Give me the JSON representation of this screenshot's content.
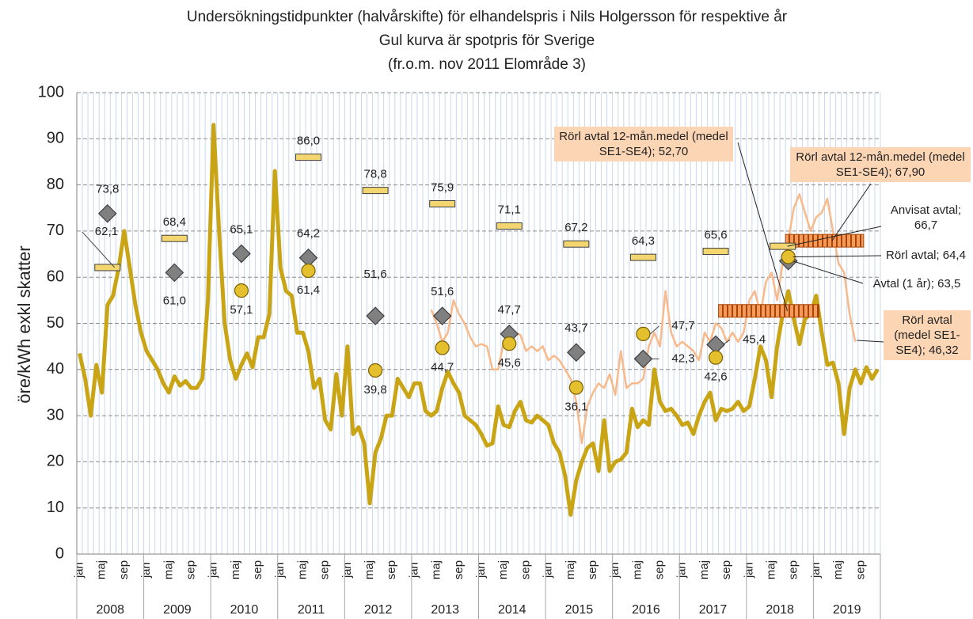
{
  "chart_data": {
    "type": "line",
    "title": [
      "Undersökningstidpunkter (halvårskifte) för elhandelspris i Nils Holgersson för respektive år",
      "Gul kurva är spotpris för Sverige",
      "(fr.o.m. nov 2011 Elområde 3)"
    ],
    "ylabel": "öre/kWh exkl skatter",
    "ylim": [
      0,
      100
    ],
    "yticks": [
      0,
      10,
      20,
      30,
      40,
      50,
      60,
      70,
      80,
      90,
      100
    ],
    "grid": true,
    "month_labels": [
      "jan",
      "maj",
      "sep"
    ],
    "years": [
      "2008",
      "2009",
      "2010",
      "2011",
      "2012",
      "2013",
      "2014",
      "2015",
      "2016",
      "2017",
      "2018",
      "2019"
    ],
    "x": [
      "2008-01",
      "2008-02",
      "2008-03",
      "2008-04",
      "2008-05",
      "2008-06",
      "2008-07",
      "2008-08",
      "2008-09",
      "2008-10",
      "2008-11",
      "2008-12",
      "2009-01",
      "2009-02",
      "2009-03",
      "2009-04",
      "2009-05",
      "2009-06",
      "2009-07",
      "2009-08",
      "2009-09",
      "2009-10",
      "2009-11",
      "2009-12",
      "2010-01",
      "2010-02",
      "2010-03",
      "2010-04",
      "2010-05",
      "2010-06",
      "2010-07",
      "2010-08",
      "2010-09",
      "2010-10",
      "2010-11",
      "2010-12",
      "2011-01",
      "2011-02",
      "2011-03",
      "2011-04",
      "2011-05",
      "2011-06",
      "2011-07",
      "2011-08",
      "2011-09",
      "2011-10",
      "2011-11",
      "2011-12",
      "2012-01",
      "2012-02",
      "2012-03",
      "2012-04",
      "2012-05",
      "2012-06",
      "2012-07",
      "2012-08",
      "2012-09",
      "2012-10",
      "2012-11",
      "2012-12",
      "2013-01",
      "2013-02",
      "2013-03",
      "2013-04",
      "2013-05",
      "2013-06",
      "2013-07",
      "2013-08",
      "2013-09",
      "2013-10",
      "2013-11",
      "2013-12",
      "2014-01",
      "2014-02",
      "2014-03",
      "2014-04",
      "2014-05",
      "2014-06",
      "2014-07",
      "2014-08",
      "2014-09",
      "2014-10",
      "2014-11",
      "2014-12",
      "2015-01",
      "2015-02",
      "2015-03",
      "2015-04",
      "2015-05",
      "2015-06",
      "2015-07",
      "2015-08",
      "2015-09",
      "2015-10",
      "2015-11",
      "2015-12",
      "2016-01",
      "2016-02",
      "2016-03",
      "2016-04",
      "2016-05",
      "2016-06",
      "2016-07",
      "2016-08",
      "2016-09",
      "2016-10",
      "2016-11",
      "2016-12",
      "2017-01",
      "2017-02",
      "2017-03",
      "2017-04",
      "2017-05",
      "2017-06",
      "2017-07",
      "2017-08",
      "2017-09",
      "2017-10",
      "2017-11",
      "2017-12",
      "2018-01",
      "2018-02",
      "2018-03",
      "2018-04",
      "2018-05",
      "2018-06",
      "2018-07",
      "2018-08",
      "2018-09",
      "2018-10",
      "2018-11",
      "2018-12",
      "2019-01",
      "2019-02",
      "2019-03",
      "2019-04",
      "2019-05",
      "2019-06",
      "2019-07",
      "2019-08",
      "2019-09",
      "2019-10",
      "2019-11",
      "2019-12"
    ],
    "series": [
      {
        "color": "#c9a516",
        "values": [
          43.5,
          38,
          30,
          41,
          35,
          54,
          56,
          62,
          70,
          62,
          54,
          48,
          44,
          42,
          40,
          37,
          35,
          38.5,
          36.5,
          37.5,
          36,
          36,
          38,
          55,
          93,
          70,
          50,
          42,
          38,
          41,
          43.5,
          40.5,
          47,
          47,
          52,
          83,
          62,
          57,
          56,
          48,
          48,
          44,
          36,
          38,
          29,
          27,
          39,
          30,
          45,
          26,
          27.5,
          24,
          11,
          22,
          25,
          30,
          30,
          38,
          36,
          34,
          37,
          37,
          31,
          30,
          31,
          36,
          39.5,
          37,
          35,
          30,
          29,
          28,
          26,
          23.5,
          24,
          32,
          28,
          27.5,
          31,
          33,
          29,
          28.5,
          30,
          29,
          28,
          24,
          22,
          17,
          8.5,
          16,
          20,
          23,
          24,
          18,
          29,
          18,
          20,
          20.5,
          22,
          31.5,
          27.5,
          29,
          28,
          40,
          33,
          31,
          31.5,
          30,
          28,
          28.5,
          26,
          30,
          33,
          35,
          29,
          31.5,
          31,
          31.5,
          33,
          31,
          32,
          38,
          45,
          42,
          34,
          45,
          52,
          57,
          51,
          45.5,
          51,
          52,
          56,
          48,
          41,
          41.5,
          37,
          26,
          36,
          40,
          37,
          40.5,
          38,
          40
        ]
      },
      {
        "color": "#f8b98b",
        "values": [
          null,
          null,
          null,
          null,
          null,
          null,
          null,
          null,
          null,
          null,
          null,
          null,
          null,
          null,
          null,
          null,
          null,
          null,
          null,
          null,
          null,
          null,
          null,
          null,
          null,
          null,
          null,
          null,
          null,
          null,
          null,
          null,
          null,
          null,
          null,
          null,
          null,
          null,
          null,
          null,
          null,
          null,
          null,
          null,
          null,
          null,
          null,
          null,
          null,
          null,
          null,
          null,
          null,
          null,
          null,
          null,
          null,
          null,
          null,
          null,
          null,
          null,
          null,
          53,
          50,
          46,
          48,
          55,
          52,
          50,
          47,
          45,
          45.5,
          45,
          40,
          40,
          46,
          45,
          48,
          47.5,
          44,
          45,
          44,
          45,
          42,
          43,
          42,
          40,
          38,
          33,
          24,
          32,
          35,
          37,
          36,
          39,
          34.5,
          44,
          36,
          37,
          37,
          38,
          45,
          48,
          45,
          57,
          48,
          45,
          46,
          45,
          44,
          42,
          48,
          46,
          50,
          49,
          46,
          48,
          46,
          48,
          55,
          57,
          52,
          59,
          61,
          55,
          63,
          68,
          75,
          78,
          74,
          70,
          73,
          74,
          77,
          70,
          63,
          61,
          52,
          46,
          null,
          null,
          null,
          null
        ]
      }
    ],
    "markers": [
      {
        "marker": "rect",
        "color": "#f3d66f",
        "x": [
          "2008-06",
          "2009-06",
          "2011-06",
          "2012-06",
          "2013-06",
          "2014-06",
          "2015-06",
          "2016-06",
          "2017-07",
          "2018-07"
        ],
        "values": [
          62.1,
          68.4,
          86.0,
          78.8,
          75.9,
          71.1,
          67.2,
          64.3,
          65.6,
          66.7
        ],
        "value_labels": [
          "62,1",
          "68,4",
          "86,0",
          "78,8",
          "75,9",
          "71,1",
          "67,2",
          "64,3",
          "65,6",
          "Anvisat avtal; 66,7"
        ]
      },
      {
        "marker": "diamond",
        "color": "#808080",
        "x": [
          "2008-06",
          "2009-06",
          "2010-06",
          "2011-06",
          "2012-06",
          "2013-06",
          "2014-06",
          "2015-06",
          "2016-06",
          "2017-07",
          "2018-08"
        ],
        "values": [
          73.8,
          61.0,
          65.1,
          64.2,
          51.6,
          51.6,
          47.7,
          43.7,
          42.3,
          45.4,
          63.5
        ],
        "value_labels": [
          "73,8",
          "61,0",
          "65,1",
          "64,2",
          "51,6",
          "51,6",
          "47,7",
          "43,7",
          "42,3",
          "45,4",
          "Avtal (1 år); 63,5"
        ]
      },
      {
        "marker": "circle",
        "color": "#e5c02e",
        "x": [
          "2010-06",
          "2011-06",
          "2012-06",
          "2013-06",
          "2014-06",
          "2015-06",
          "2016-06",
          "2017-07",
          "2018-08"
        ],
        "values": [
          57.1,
          61.4,
          39.8,
          44.7,
          45.6,
          36.1,
          47.7,
          42.6,
          64.4
        ],
        "value_labels": [
          "57,1",
          "61,4",
          "39,8",
          "44,7",
          "45,6",
          "36,1",
          "47,7",
          "42,6",
          "Rörl avtal; 64,4"
        ]
      }
    ],
    "period_averages": {
      "color": "#f39a5c",
      "items": [
        {
          "from": "2017-08",
          "to": "2019-01",
          "value": 52.7,
          "label": "Rörl avtal 12-mån.medel (medel SE1-SE4); 52,70"
        },
        {
          "from": "2018-08",
          "to": "2019-09",
          "value": 67.9,
          "label": "Rörl avtal 12-mån.medel (medel SE1-SE4); 67,90"
        }
      ]
    },
    "annotations": [
      {
        "text": "Rörl avtal (medel SE1-SE4); 46,32",
        "value": 46.32
      }
    ]
  }
}
